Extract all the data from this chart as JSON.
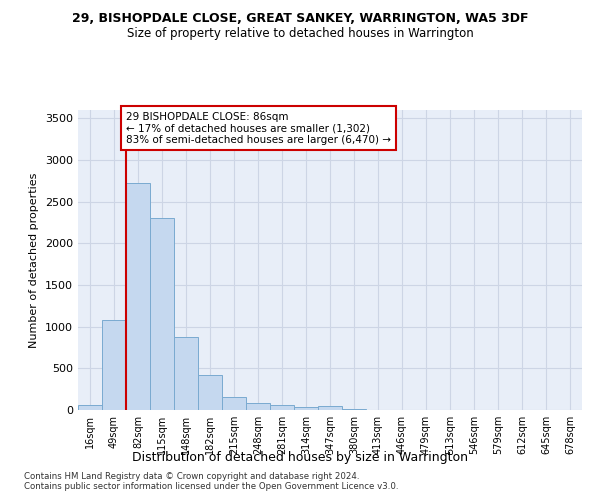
{
  "title_line1": "29, BISHOPDALE CLOSE, GREAT SANKEY, WARRINGTON, WA5 3DF",
  "title_line2": "Size of property relative to detached houses in Warrington",
  "xlabel": "Distribution of detached houses by size in Warrington",
  "ylabel": "Number of detached properties",
  "bar_color": "#c5d8ef",
  "bar_edge_color": "#7aaad0",
  "categories": [
    "16sqm",
    "49sqm",
    "82sqm",
    "115sqm",
    "148sqm",
    "182sqm",
    "215sqm",
    "248sqm",
    "281sqm",
    "314sqm",
    "347sqm",
    "380sqm",
    "413sqm",
    "446sqm",
    "479sqm",
    "513sqm",
    "546sqm",
    "579sqm",
    "612sqm",
    "645sqm",
    "678sqm"
  ],
  "values": [
    60,
    1080,
    2720,
    2300,
    880,
    420,
    160,
    80,
    55,
    40,
    45,
    10,
    5,
    2,
    0,
    0,
    0,
    0,
    0,
    0,
    0
  ],
  "ylim": [
    0,
    3600
  ],
  "yticks": [
    0,
    500,
    1000,
    1500,
    2000,
    2500,
    3000,
    3500
  ],
  "red_line_bin_index": 2,
  "annotation_text": "29 BISHOPDALE CLOSE: 86sqm\n← 17% of detached houses are smaller (1,302)\n83% of semi-detached houses are larger (6,470) →",
  "annotation_box_color": "#ffffff",
  "annotation_box_edge_color": "#cc0000",
  "grid_color": "#cdd5e5",
  "background_color": "#e8eef8",
  "footer_line1": "Contains HM Land Registry data © Crown copyright and database right 2024.",
  "footer_line2": "Contains public sector information licensed under the Open Government Licence v3.0."
}
